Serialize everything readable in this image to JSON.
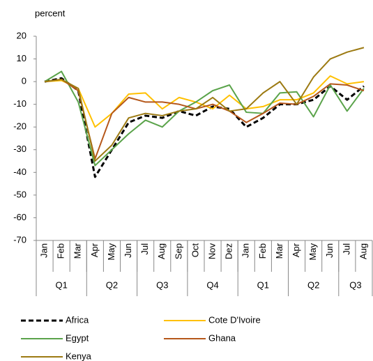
{
  "chart_data": {
    "type": "line",
    "y_label": "percent",
    "categories": [
      "Jan",
      "Feb",
      "Mar",
      "Apr",
      "May",
      "Jun",
      "Jul",
      "Aug",
      "Sep",
      "Oct",
      "Nov",
      "Dez",
      "Jan",
      "Feb",
      "Mar",
      "Apr",
      "May",
      "Jun",
      "Jul",
      "Aug"
    ],
    "groups": [
      "Q1",
      "Q2",
      "Q3",
      "Q4",
      "Q1",
      "Q2",
      "Q3"
    ],
    "group_sizes": [
      3,
      3,
      3,
      3,
      3,
      3,
      2
    ],
    "ylim": [
      -70,
      20
    ],
    "yticks": [
      -70,
      -60,
      -50,
      -40,
      -30,
      -20,
      -10,
      0,
      10,
      20
    ],
    "series": [
      {
        "name": "Africa",
        "color": "#000000",
        "dashed": true,
        "values": [
          0,
          1.5,
          -4,
          -42,
          -30,
          -18,
          -15,
          -16,
          -13,
          -15,
          -11,
          -12,
          -20,
          -16,
          -10,
          -10,
          -8,
          -2,
          -8,
          -2
        ]
      },
      {
        "name": "Cote D'Ivoire",
        "color": "#ffc000",
        "values": [
          0,
          0.5,
          -3,
          -20,
          -14,
          -5.5,
          -5,
          -12,
          -7,
          -9,
          -12,
          -6,
          -12,
          -11,
          -8,
          -8,
          -5,
          2.5,
          -1,
          0
        ]
      },
      {
        "name": "Egypt",
        "color": "#5aa34a",
        "values": [
          0,
          4.5,
          -9,
          -37,
          -30,
          -23,
          -17,
          -20,
          -13,
          -9,
          -4,
          -1.5,
          -13.5,
          -14,
          -5,
          -4.5,
          -15.5,
          -1.5,
          -13,
          -3
        ]
      },
      {
        "name": "Ghana",
        "color": "#b5571a",
        "values": [
          0,
          1,
          -4,
          -34,
          -14,
          -7,
          -9,
          -9,
          -10,
          -12,
          -10,
          -13,
          -18,
          -14,
          -9.5,
          -10,
          -6.5,
          -1,
          -1.5,
          -4
        ]
      },
      {
        "name": "Kenya",
        "color": "#9c7a12",
        "values": [
          0,
          1,
          -3,
          -35,
          -28,
          -16,
          -14,
          -15,
          -13,
          -12,
          -7,
          -13,
          -12,
          -5,
          0,
          -10,
          2,
          10,
          13,
          15
        ]
      }
    ]
  }
}
